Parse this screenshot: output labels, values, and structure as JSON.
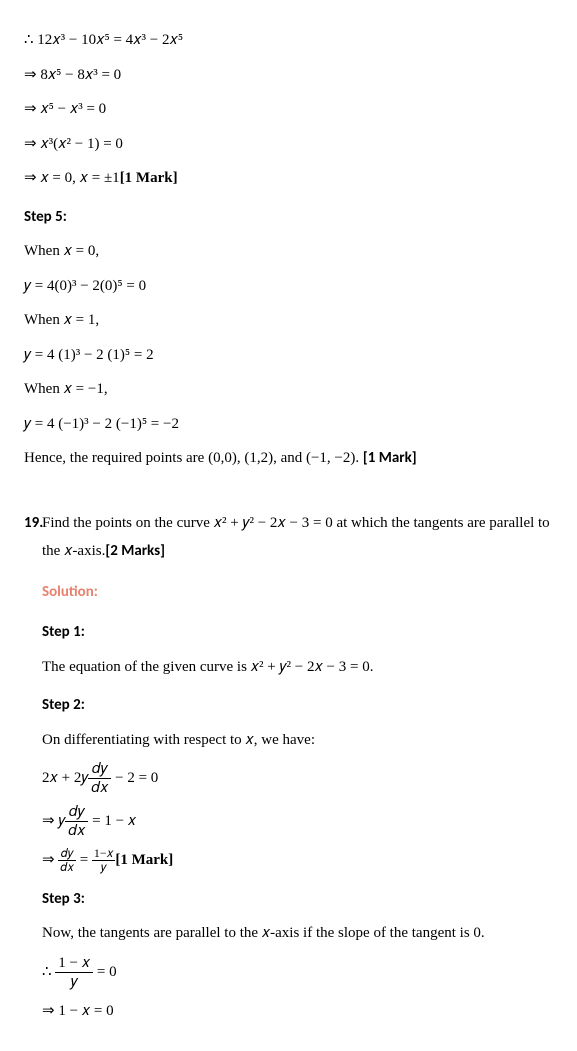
{
  "sol18": {
    "l1": "∴ 12𝑥³ − 10𝑥⁵ = 4𝑥³ − 2𝑥⁵",
    "l2": "⇒ 8𝑥⁵ − 8𝑥³ = 0",
    "l3": "⇒ 𝑥⁵ − 𝑥³ = 0",
    "l4": "⇒ 𝑥³(𝑥² − 1) = 0",
    "l5_a": "⇒ 𝑥 = 0,  𝑥 = ±1",
    "l5_mark": "[1 Mark]",
    "step5": "Step 5:",
    "when0": "When 𝑥 =  0,",
    "y0": "𝑦 = 4(0)³ − 2(0)⁵ = 0",
    "when1": "When 𝑥 = 1,",
    "y1": " 𝑦 = 4 (1)³ − 2 (1)⁵ = 2",
    "whenm1": "When 𝑥 = −1,",
    "ym1": " 𝑦 = 4 (−1)³ − 2 (−1)⁵ = −2",
    "conc_a": "Hence, the required points are (0,0), (1,2), and (−1, −2). ",
    "conc_mark": "[1 Mark]"
  },
  "q19": {
    "num": "19.",
    "text_a": "Find the points on the curve 𝑥² + 𝑦² − 2𝑥 − 3 = 0 at which the tangents are parallel to the 𝑥-axis.",
    "text_mark": "[2 Marks]",
    "solution": "Solution:",
    "step1": "Step 1:",
    "s1_text": "The equation of the given curve is 𝑥² + 𝑦² − 2𝑥 − 3 = 0.",
    "step2": "Step 2:",
    "s2_text": "On differentiating with respect to 𝑥, we have:",
    "s2_l1_a": "2𝑥 + 2𝑦",
    "s2_l1_num": "𝑑𝑦",
    "s2_l1_den": "𝑑𝑥",
    "s2_l1_b": " − 2 = 0",
    "s2_l2_a": "⇒ 𝑦",
    "s2_l2_num": "𝑑𝑦",
    "s2_l2_den": "𝑑𝑥",
    "s2_l2_b": " = 1 − 𝑥",
    "s2_l3_a": "⇒ ",
    "s2_l3_num1": "𝑑𝑦",
    "s2_l3_den1": "𝑑𝑥",
    "s2_l3_eq": " = ",
    "s2_l3_num2": "1−𝑥",
    "s2_l3_den2": "𝑦",
    "s2_l3_mark": "[1 Mark]",
    "step3": "Step 3:",
    "s3_text": "Now, the tangents are parallel to the 𝑥-axis if the slope of the tangent is 0.",
    "s3_l1_a": "∴ ",
    "s3_l1_num": "1 − 𝑥",
    "s3_l1_den": "𝑦",
    "s3_l1_b": " = 0",
    "s3_l2": "⇒ 1 − 𝑥 = 0"
  }
}
